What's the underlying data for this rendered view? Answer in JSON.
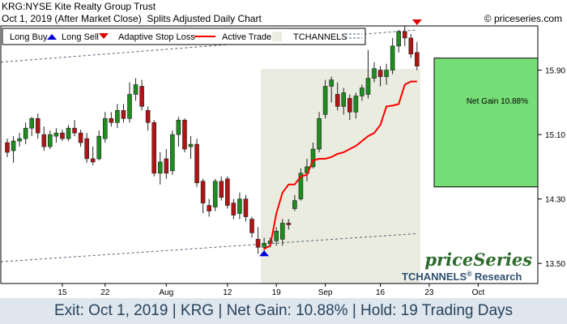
{
  "header": {
    "title": "KRG:NYSE Kite Realty Group Trust",
    "subtitle_date": "Oct 1, 2019 (After Market Close)",
    "subtitle_desc": "Splits Adjusted Daily Chart",
    "copyright": "© priceseries.com"
  },
  "legend": {
    "items": [
      "Long Buy",
      "Long Sell",
      "Adaptive Stop Loss",
      "Active Trade",
      "TCHANNELS"
    ],
    "placement": "top-left"
  },
  "brand": {
    "logo": "priceSeries",
    "tchannels": "TCHANNELS",
    "research": "Research",
    "reg": "®"
  },
  "footer": "Exit: Oct 1, 2019 | KRG | Net Gain: 10.88% | Hold: 19 Trading Days",
  "colors": {
    "up": "#1e8c1e",
    "down": "#b01515",
    "stop": "#ff0000",
    "active_bg": "#e9ecdf",
    "gain_box": "#77dd77",
    "channel": "#506478",
    "buy_arrow": "#0000dd",
    "sell_arrow": "#dd0000"
  },
  "chart_data": {
    "type": "candlestick",
    "y_ticks": [
      "15.90",
      "15.10",
      "14.30",
      "13.50"
    ],
    "x_ticks": [
      "15",
      "22",
      "Aug",
      "12",
      "19",
      "Sep",
      "16",
      "23",
      "Oct"
    ],
    "ylim": [
      13.25,
      16.45
    ],
    "gain_label": "Net Gain 10.88%",
    "entry": {
      "date": "Sep 4, 2019",
      "price": 13.77
    },
    "exit": {
      "date": "Oct 1, 2019",
      "price": 15.27
    },
    "candles": [
      {
        "o": 15.0,
        "h": 15.05,
        "l": 14.82,
        "c": 14.88
      },
      {
        "o": 14.9,
        "h": 15.08,
        "l": 14.75,
        "c": 15.02
      },
      {
        "o": 15.02,
        "h": 15.12,
        "l": 14.95,
        "c": 15.05
      },
      {
        "o": 15.05,
        "h": 15.25,
        "l": 14.98,
        "c": 15.18
      },
      {
        "o": 15.18,
        "h": 15.32,
        "l": 15.08,
        "c": 15.3
      },
      {
        "o": 15.3,
        "h": 15.36,
        "l": 15.05,
        "c": 15.12
      },
      {
        "o": 15.1,
        "h": 15.2,
        "l": 14.9,
        "c": 14.95
      },
      {
        "o": 14.95,
        "h": 15.15,
        "l": 14.92,
        "c": 15.1
      },
      {
        "o": 15.08,
        "h": 15.18,
        "l": 15.0,
        "c": 15.12
      },
      {
        "o": 15.12,
        "h": 15.16,
        "l": 15.02,
        "c": 15.05
      },
      {
        "o": 15.05,
        "h": 15.22,
        "l": 15.02,
        "c": 15.18
      },
      {
        "o": 15.18,
        "h": 15.28,
        "l": 15.08,
        "c": 15.12
      },
      {
        "o": 15.12,
        "h": 15.16,
        "l": 14.95,
        "c": 15.0
      },
      {
        "o": 15.05,
        "h": 15.12,
        "l": 14.75,
        "c": 14.8
      },
      {
        "o": 14.8,
        "h": 14.95,
        "l": 14.72,
        "c": 14.76
      },
      {
        "o": 14.8,
        "h": 15.15,
        "l": 14.78,
        "c": 15.08
      },
      {
        "o": 15.05,
        "h": 15.38,
        "l": 15.0,
        "c": 15.3
      },
      {
        "o": 15.3,
        "h": 15.38,
        "l": 15.2,
        "c": 15.25
      },
      {
        "o": 15.25,
        "h": 15.48,
        "l": 15.18,
        "c": 15.4
      },
      {
        "o": 15.4,
        "h": 15.48,
        "l": 15.25,
        "c": 15.3
      },
      {
        "o": 15.3,
        "h": 15.75,
        "l": 15.25,
        "c": 15.6
      },
      {
        "o": 15.6,
        "h": 15.8,
        "l": 15.52,
        "c": 15.72
      },
      {
        "o": 15.7,
        "h": 15.78,
        "l": 15.4,
        "c": 15.45
      },
      {
        "o": 15.4,
        "h": 15.45,
        "l": 15.15,
        "c": 15.25
      },
      {
        "o": 15.25,
        "h": 15.28,
        "l": 14.58,
        "c": 14.62
      },
      {
        "o": 14.62,
        "h": 14.88,
        "l": 14.48,
        "c": 14.76
      },
      {
        "o": 14.8,
        "h": 14.92,
        "l": 14.55,
        "c": 14.62
      },
      {
        "o": 14.65,
        "h": 15.15,
        "l": 14.6,
        "c": 15.1
      },
      {
        "o": 15.1,
        "h": 15.32,
        "l": 14.95,
        "c": 15.28
      },
      {
        "o": 15.28,
        "h": 15.3,
        "l": 14.88,
        "c": 14.92
      },
      {
        "o": 14.95,
        "h": 15.08,
        "l": 14.8,
        "c": 14.98
      },
      {
        "o": 14.98,
        "h": 15.05,
        "l": 14.45,
        "c": 14.5
      },
      {
        "o": 14.52,
        "h": 14.55,
        "l": 14.12,
        "c": 14.25
      },
      {
        "o": 14.22,
        "h": 14.3,
        "l": 14.08,
        "c": 14.15
      },
      {
        "o": 14.2,
        "h": 14.55,
        "l": 14.15,
        "c": 14.52
      },
      {
        "o": 14.52,
        "h": 14.58,
        "l": 14.28,
        "c": 14.32
      },
      {
        "o": 14.55,
        "h": 14.58,
        "l": 14.18,
        "c": 14.22
      },
      {
        "o": 14.25,
        "h": 14.3,
        "l": 14.05,
        "c": 14.1
      },
      {
        "o": 14.12,
        "h": 14.38,
        "l": 14.05,
        "c": 14.3
      },
      {
        "o": 14.3,
        "h": 14.35,
        "l": 14.02,
        "c": 14.08
      },
      {
        "o": 14.05,
        "h": 14.08,
        "l": 13.82,
        "c": 13.88
      },
      {
        "o": 13.8,
        "h": 13.95,
        "l": 13.62,
        "c": 13.7
      },
      {
        "o": 13.7,
        "h": 13.82,
        "l": 13.6,
        "c": 13.75
      },
      {
        "o": 13.75,
        "h": 13.82,
        "l": 13.7,
        "c": 13.78
      },
      {
        "o": 13.78,
        "h": 13.95,
        "l": 13.72,
        "c": 13.9
      },
      {
        "o": 13.8,
        "h": 14.05,
        "l": 13.72,
        "c": 14.0
      },
      {
        "o": 14.0,
        "h": 14.05,
        "l": 13.92,
        "c": 13.98
      },
      {
        "o": 14.18,
        "h": 14.35,
        "l": 14.15,
        "c": 14.28
      },
      {
        "o": 14.3,
        "h": 14.68,
        "l": 14.28,
        "c": 14.62
      },
      {
        "o": 14.62,
        "h": 14.8,
        "l": 14.52,
        "c": 14.7
      },
      {
        "o": 14.7,
        "h": 15.0,
        "l": 14.68,
        "c": 14.92
      },
      {
        "o": 14.92,
        "h": 15.38,
        "l": 14.88,
        "c": 15.3
      },
      {
        "o": 15.35,
        "h": 15.78,
        "l": 15.3,
        "c": 15.7
      },
      {
        "o": 15.7,
        "h": 15.82,
        "l": 15.5,
        "c": 15.78
      },
      {
        "o": 15.6,
        "h": 15.75,
        "l": 15.4,
        "c": 15.45
      },
      {
        "o": 15.45,
        "h": 15.68,
        "l": 15.35,
        "c": 15.62
      },
      {
        "o": 15.55,
        "h": 15.6,
        "l": 15.28,
        "c": 15.38
      },
      {
        "o": 15.38,
        "h": 15.62,
        "l": 15.3,
        "c": 15.58
      },
      {
        "o": 15.58,
        "h": 15.72,
        "l": 15.52,
        "c": 15.68
      },
      {
        "o": 15.6,
        "h": 16.15,
        "l": 15.55,
        "c": 15.8
      },
      {
        "o": 15.8,
        "h": 16.0,
        "l": 15.75,
        "c": 15.92
      },
      {
        "o": 15.9,
        "h": 15.95,
        "l": 15.7,
        "c": 15.82
      },
      {
        "o": 15.82,
        "h": 15.98,
        "l": 15.72,
        "c": 15.9
      },
      {
        "o": 15.9,
        "h": 16.3,
        "l": 15.85,
        "c": 16.2
      },
      {
        "o": 16.2,
        "h": 16.4,
        "l": 16.12,
        "c": 16.38
      },
      {
        "o": 16.38,
        "h": 16.45,
        "l": 16.2,
        "c": 16.3
      },
      {
        "o": 16.3,
        "h": 16.35,
        "l": 16.05,
        "c": 16.1
      },
      {
        "o": 16.12,
        "h": 16.25,
        "l": 15.9,
        "c": 15.95
      }
    ],
    "stop_loss": [
      13.68,
      13.72,
      14.12,
      14.38,
      14.48,
      14.48,
      14.58,
      14.6,
      14.78,
      14.8,
      14.8,
      14.82,
      14.86,
      14.88,
      14.92,
      14.96,
      15.02,
      15.08,
      15.12,
      15.22,
      15.45,
      15.46,
      15.48,
      15.72,
      15.76,
      15.76
    ],
    "stop_start_index": 42,
    "channel_upper": [
      16.0,
      16.4
    ],
    "channel_lower": [
      13.52,
      13.87
    ]
  }
}
